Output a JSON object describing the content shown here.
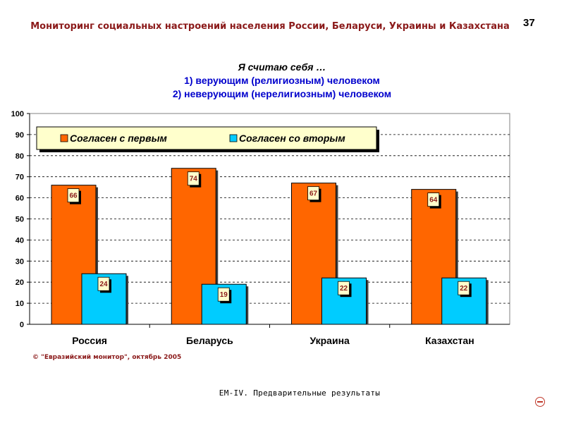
{
  "header": {
    "title": "Мониторинг социальных настроений населения России, Беларуси, Украины и Казахстана",
    "page_number": "37"
  },
  "chart_heading": {
    "title": "Я считаю себя …",
    "subtitle1": "1) верующим (религиозным) человеком",
    "subtitle2": "2) неверующим (нерелигиозным) человеком"
  },
  "chart_data": {
    "type": "bar",
    "title": "Я считаю себя …",
    "categories": [
      "Россия",
      "Беларусь",
      "Украина",
      "Казахстан"
    ],
    "series": [
      {
        "name": "Согласен с первым",
        "values": [
          66,
          74,
          67,
          64
        ],
        "color": "#FF6600"
      },
      {
        "name": "Согласен со вторым",
        "values": [
          24,
          19,
          22,
          22
        ],
        "color": "#00CCFF"
      }
    ],
    "ylim": [
      0,
      100
    ],
    "yticks": [
      0,
      10,
      20,
      30,
      40,
      50,
      60,
      70,
      80,
      90,
      100
    ],
    "xlabel": "",
    "ylabel": "",
    "grid": true,
    "legend": "top-left",
    "data_labels": true
  },
  "copyright": "© \"Евразийский монитор\", октябрь 2005",
  "footer": "EM-IV. Предварительные результаты",
  "icons": {
    "nav": "minus-circle-icon"
  }
}
